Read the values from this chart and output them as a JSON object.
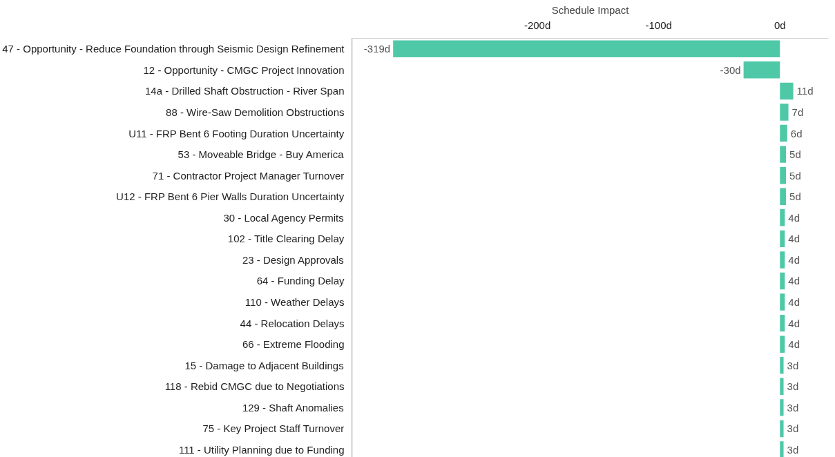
{
  "chart_data": {
    "type": "bar",
    "orientation": "horizontal",
    "xlabel": "Schedule Impact",
    "categories": [
      "47 - Opportunity - Reduce Foundation through Seismic Design Refinement",
      "12 - Opportunity - CMGC Project Innovation",
      "14a - Drilled Shaft Obstruction - River Span",
      "88 - Wire-Saw Demolition Obstructions",
      "U11 - FRP Bent 6 Footing Duration Uncertainty",
      "53 - Moveable Bridge - Buy America",
      "71 - Contractor Project Manager Turnover",
      "U12 - FRP Bent 6 Pier Walls Duration Uncertainty",
      "30 - Local Agency Permits",
      "102 - Title Clearing Delay",
      "23 - Design Approvals",
      "64 - Funding Delay",
      "110 - Weather Delays",
      "44 - Relocation Delays",
      "66 - Extreme Flooding",
      "15 - Damage to Adjacent Buildings",
      "118 - Rebid CMGC due to Negotiations",
      "129 - Shaft Anomalies",
      "75 - Key Project Staff Turnover",
      "111 - Utility Planning due to Funding"
    ],
    "values": [
      -319,
      -30,
      11,
      7,
      6,
      5,
      5,
      5,
      4,
      4,
      4,
      4,
      4,
      4,
      4,
      3,
      3,
      3,
      3,
      3
    ],
    "value_labels": [
      "-319d",
      "-30d",
      "11d",
      "7d",
      "6d",
      "5d",
      "5d",
      "5d",
      "4d",
      "4d",
      "4d",
      "4d",
      "4d",
      "4d",
      "4d",
      "3d",
      "3d",
      "3d",
      "3d",
      "3d"
    ],
    "color": "#4fc8a8",
    "xlim": [
      -353,
      40
    ],
    "xticks": [
      {
        "value": -200,
        "label": "-200d"
      },
      {
        "value": -100,
        "label": "-100d"
      },
      {
        "value": 0,
        "label": "0d"
      }
    ],
    "grid": false
  }
}
